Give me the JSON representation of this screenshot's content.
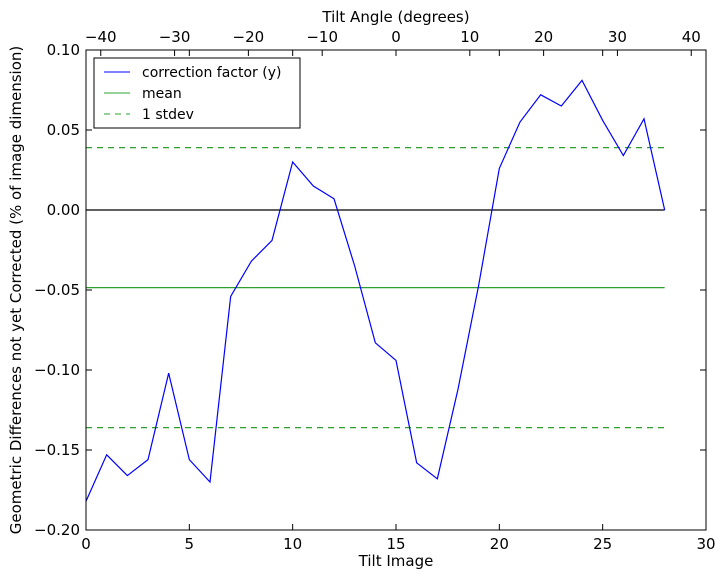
{
  "chart_data": {
    "type": "line",
    "xlabel": "Tilt Image",
    "ylabel": "Geometric Differences not yet Corrected (% of image dimension)",
    "top_xlabel": "Tilt Angle (degrees)",
    "xlim": [
      0,
      30
    ],
    "ylim": [
      -0.2,
      0.1
    ],
    "top_xlim": [
      -42,
      42
    ],
    "x_ticks": [
      0,
      5,
      10,
      15,
      20,
      25,
      30
    ],
    "x_tick_labels": [
      "0",
      "5",
      "10",
      "15",
      "20",
      "25",
      "30"
    ],
    "y_ticks": [
      -0.2,
      -0.15,
      -0.1,
      -0.05,
      0.0,
      0.05,
      0.1
    ],
    "y_tick_labels": [
      "−0.20",
      "−0.15",
      "−0.10",
      "−0.05",
      "0.00",
      "0.05",
      "0.10"
    ],
    "top_ticks": [
      -40,
      -30,
      -20,
      -10,
      0,
      10,
      20,
      30,
      40
    ],
    "top_tick_labels": [
      "−40",
      "−30",
      "−20",
      "−10",
      "0",
      "10",
      "20",
      "30",
      "40"
    ],
    "legend_position": "top-left",
    "series": [
      {
        "name": "correction factor (y)",
        "color": "#0000ff",
        "style": "solid",
        "x": [
          0,
          1,
          2,
          3,
          4,
          5,
          6,
          7,
          8,
          9,
          10,
          11,
          12,
          13,
          14,
          15,
          16,
          17,
          18,
          19,
          20,
          21,
          22,
          23,
          24,
          25,
          26,
          27,
          28
        ],
        "y": [
          -0.182,
          -0.153,
          -0.166,
          -0.156,
          -0.102,
          -0.156,
          -0.17,
          -0.054,
          -0.032,
          -0.019,
          0.03,
          0.015,
          0.007,
          -0.035,
          -0.083,
          -0.094,
          -0.158,
          -0.168,
          -0.112,
          -0.047,
          0.026,
          0.055,
          0.072,
          0.065,
          0.081,
          0.056,
          0.034,
          0.057,
          0.0
        ]
      },
      {
        "name": "mean",
        "color": "#2ca02c",
        "style": "solid",
        "x": [
          0,
          28
        ],
        "y": [
          -0.0485,
          -0.0485
        ]
      },
      {
        "name": "1 stdev",
        "color": "#2ca02c",
        "style": "dashed",
        "x": [
          0,
          28
        ],
        "y": [
          0.039,
          0.039
        ]
      },
      {
        "name": "",
        "color": "#2ca02c",
        "style": "dashed",
        "x": [
          0,
          28
        ],
        "y": [
          -0.136,
          -0.136
        ]
      },
      {
        "name": "",
        "color": "#000000",
        "style": "solid",
        "x": [
          0,
          28
        ],
        "y": [
          0.0,
          0.0
        ]
      }
    ]
  }
}
